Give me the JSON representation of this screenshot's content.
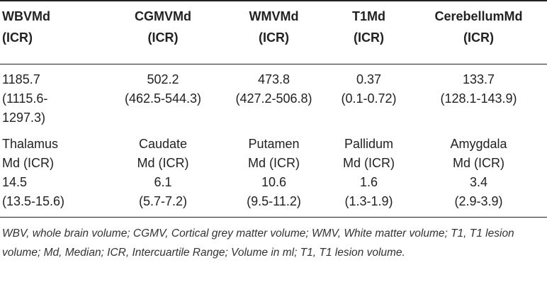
{
  "header": [
    {
      "line1": "WBVMd",
      "line2": "(ICR)"
    },
    {
      "line1": "CGMVMd",
      "line2": "(ICR)"
    },
    {
      "line1": "WMVMd",
      "line2": "(ICR)"
    },
    {
      "line1": "T1Md",
      "line2": "(ICR)"
    },
    {
      "line1": "CerebellumMd",
      "line2": "(ICR)"
    }
  ],
  "row1": [
    {
      "line1": "1185.7",
      "line2": "(1115.6-",
      "line3": "1297.3)"
    },
    {
      "line1": "502.2",
      "line2": "(462.5-544.3)"
    },
    {
      "line1": "473.8",
      "line2": "(427.2-506.8)"
    },
    {
      "line1": "0.37",
      "line2": "(0.1-0.72)"
    },
    {
      "line1": "133.7",
      "line2": "(128.1-143.9)"
    }
  ],
  "row2_labels": [
    {
      "line1": "Thalamus",
      "line2": "Md (ICR)"
    },
    {
      "line1": "Caudate",
      "line2": "Md (ICR)"
    },
    {
      "line1": "Putamen",
      "line2": "Md (ICR)"
    },
    {
      "line1": "Pallidum",
      "line2": "Md (ICR)"
    },
    {
      "line1": "Amygdala",
      "line2": "Md (ICR)"
    }
  ],
  "row2_values": [
    {
      "line1": "14.5",
      "line2": "(13.5-15.6)"
    },
    {
      "line1": "6.1",
      "line2": "(5.7-7.2)"
    },
    {
      "line1": "10.6",
      "line2": "(9.5-11.2)"
    },
    {
      "line1": "1.6",
      "line2": "(1.3-1.9)"
    },
    {
      "line1": "3.4",
      "line2": "(2.9-3.9)"
    }
  ],
  "footnote": "WBV, whole brain volume; CGMV, Cortical grey matter volume; WMV, White matter volume; T1, T1 lesion volume; Md, Median; ICR, Intercuartile Range; Volume in ml; T1, T1 lesion volume."
}
